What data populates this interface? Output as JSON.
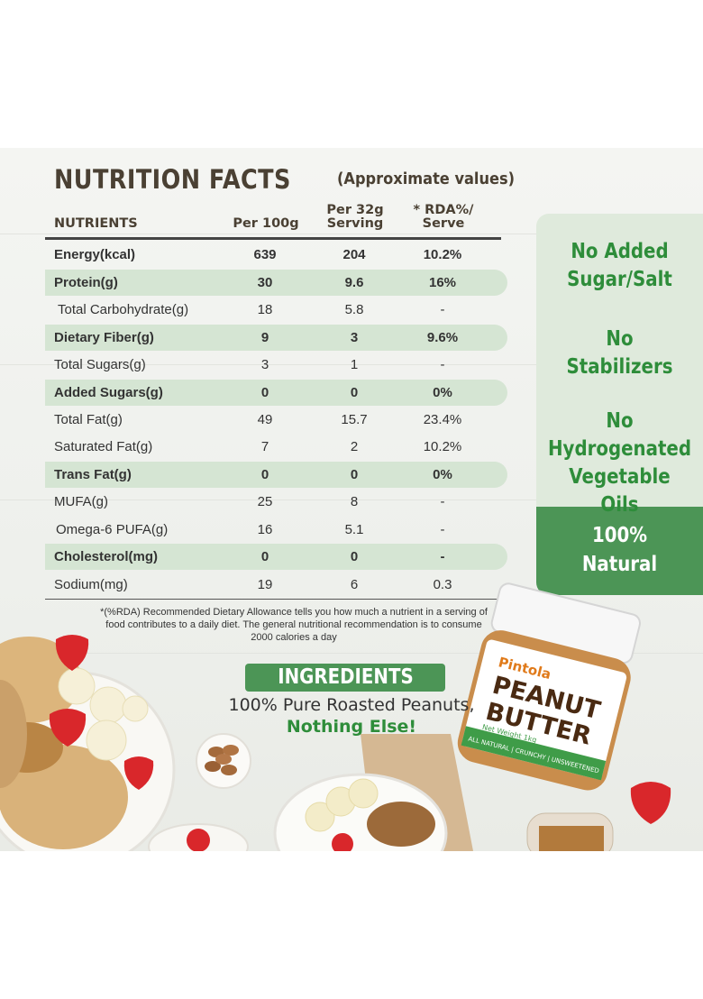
{
  "header": {
    "title": "NUTRITION FACTS",
    "subtitle": "(Approximate values)"
  },
  "table": {
    "columns": {
      "nutrients": "NUTRIENTS",
      "per100": "Per 100g",
      "per32_line1": "Per 32g",
      "per32_line2": "Serving",
      "rda_line1": "* RDA%/",
      "rda_line2": "Serve"
    },
    "rows": [
      {
        "name": "Energy(kcal)",
        "per100": "639",
        "per32": "204",
        "rda": "10.2%"
      },
      {
        "name": "Protein(g)",
        "per100": "30",
        "per32": "9.6",
        "rda": "16%"
      },
      {
        "name": "Total Carbohydrate(g)",
        "per100": "18",
        "per32": "5.8",
        "rda": "-"
      },
      {
        "name": "Dietary Fiber(g)",
        "per100": "9",
        "per32": "3",
        "rda": "9.6%"
      },
      {
        "name": "Total Sugars(g)",
        "per100": "3",
        "per32": "1",
        "rda": "-"
      },
      {
        "name": "Added Sugars(g)",
        "per100": "0",
        "per32": "0",
        "rda": "0%"
      },
      {
        "name": "Total Fat(g)",
        "per100": "49",
        "per32": "15.7",
        "rda": "23.4%"
      },
      {
        "name": "Saturated Fat(g)",
        "per100": "7",
        "per32": "2",
        "rda": "10.2%"
      },
      {
        "name": "Trans Fat(g)",
        "per100": "0",
        "per32": "0",
        "rda": "0%"
      },
      {
        "name": "MUFA(g)",
        "per100": "25",
        "per32": "8",
        "rda": "-"
      },
      {
        "name": "Omega-6 PUFA(g)",
        "per100": "16",
        "per32": "5.1",
        "rda": "-"
      },
      {
        "name": "Cholesterol(mg)",
        "per100": "0",
        "per32": "0",
        "rda": "-"
      },
      {
        "name": "Sodium(mg)",
        "per100": "19",
        "per32": "6",
        "rda": "0.3"
      }
    ],
    "footnote": "*(%RDA) Recommended Dietary Allowance tells you how much a nutrient in a serving of food contributes to a daily diet. The general nutritional recommendation is to consume 2000 calories a day"
  },
  "claims": {
    "no_added_1": "No Added",
    "no_added_2": "Sugar/Salt",
    "no_stab_1": "No",
    "no_stab_2": "Stabilizers",
    "no_hydro_1": "No",
    "no_hydro_2": "Hydrogenated",
    "no_hydro_3": "Vegetable Oils",
    "natural_1": "100%",
    "natural_2": "Natural"
  },
  "ingredients": {
    "heading": "INGREDIENTS",
    "line1": "100% Pure Roasted Peanuts,",
    "line2": "Nothing Else!"
  },
  "product": {
    "brand": "Pintola",
    "name_1": "PEANUT",
    "name_2": "BUTTER",
    "net_weight": "Net Weight 1kg",
    "tagline": "ALL NATURAL | CRUNCHY | UNSWEETENED"
  },
  "colors": {
    "accent_green": "#4c9556",
    "text_green": "#2e8d3a",
    "highlight_row": "#d5e5d3",
    "title_brown": "#4a4033"
  }
}
